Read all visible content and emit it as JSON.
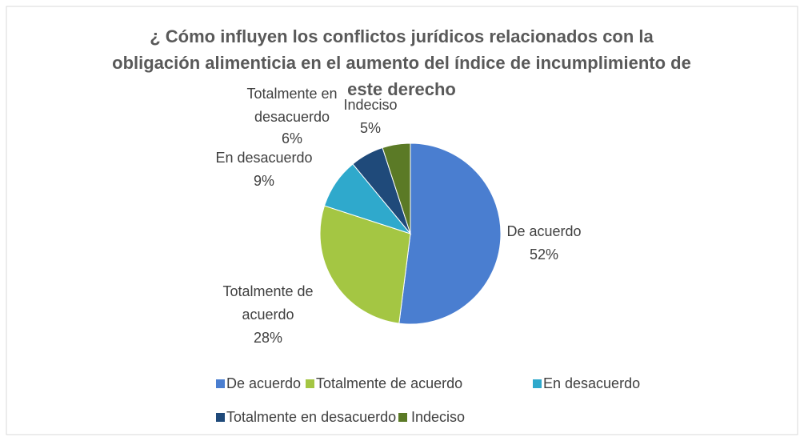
{
  "chart_data": {
    "type": "pie",
    "title": "¿ Cómo influyen los conflictos jurídicos relacionados con la obligación alimenticia en el aumento del índice de incumplimiento de este derecho",
    "categories": [
      "De acuerdo",
      "Totalmente de acuerdo",
      "En desacuerdo",
      "Totalmente en desacuerdo",
      "Indeciso"
    ],
    "values": [
      52,
      28,
      9,
      6,
      5
    ],
    "value_labels": [
      "52%",
      "28%",
      "9%",
      "6%",
      "5%"
    ],
    "colors": [
      "#4a7ed0",
      "#a4c643",
      "#2fa9cc",
      "#1f4a7a",
      "#5b7a26"
    ],
    "legend": "bottom"
  }
}
